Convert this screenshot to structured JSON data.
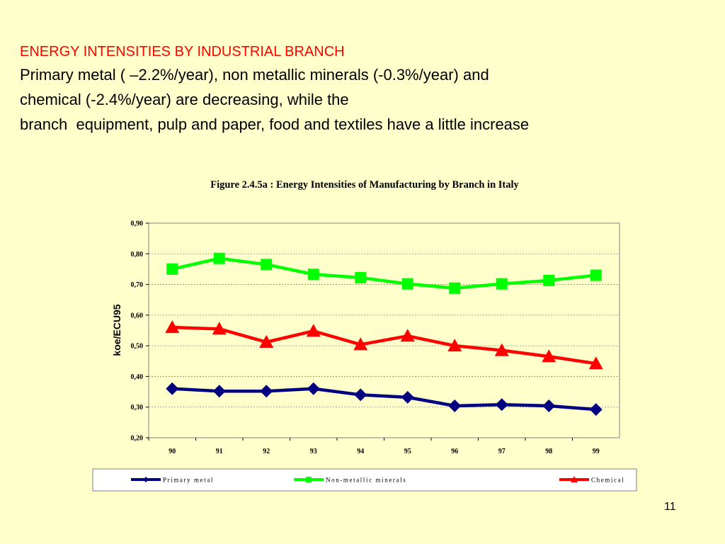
{
  "slide": {
    "heading": "ENERGY INTENSITIES BY INDUSTRIAL BRANCH",
    "body_lines": [
      "Primary metal ( –2.2%/year), non metallic minerals (-0.3%/year) and",
      "chemical (-2.4%/year) are decreasing, while the",
      "branch  equipment, pulp and paper, food and textiles have a little increase"
    ],
    "slide_number": "11"
  },
  "colors": {
    "background": "#ffffcc",
    "heading": "#ff0000",
    "primary_metal": "#000080",
    "non_metallic_minerals": "#00ff00",
    "chemical": "#ff0000",
    "gridline": "#888888"
  },
  "chart_data": {
    "type": "line",
    "title": "Figure 2.4.5a : Energy Intensities of Manufacturing by Branch in Italy",
    "xlabel": "",
    "ylabel": "koe/ECU95",
    "categories": [
      "90",
      "91",
      "92",
      "93",
      "94",
      "95",
      "96",
      "97",
      "98",
      "99"
    ],
    "ylim": [
      0.2,
      0.9
    ],
    "y_ticks": [
      "0,20",
      "0,30",
      "0,40",
      "0,50",
      "0,60",
      "0,70",
      "0,80",
      "0,90"
    ],
    "grid": "horizontal dotted",
    "legend_position": "bottom",
    "series": [
      {
        "name": "Primary metal",
        "marker": "diamond",
        "color": "#000080",
        "values": [
          0.36,
          0.352,
          0.352,
          0.36,
          0.34,
          0.332,
          0.304,
          0.308,
          0.304,
          0.292
        ]
      },
      {
        "name": "Non-metallic minerals",
        "marker": "square",
        "color": "#00ff00",
        "values": [
          0.75,
          0.785,
          0.765,
          0.733,
          0.722,
          0.702,
          0.688,
          0.702,
          0.713,
          0.73
        ]
      },
      {
        "name": "Chemical",
        "marker": "triangle",
        "color": "#ff0000",
        "values": [
          0.56,
          0.555,
          0.512,
          0.548,
          0.504,
          0.532,
          0.5,
          0.485,
          0.465,
          0.442
        ]
      }
    ]
  }
}
